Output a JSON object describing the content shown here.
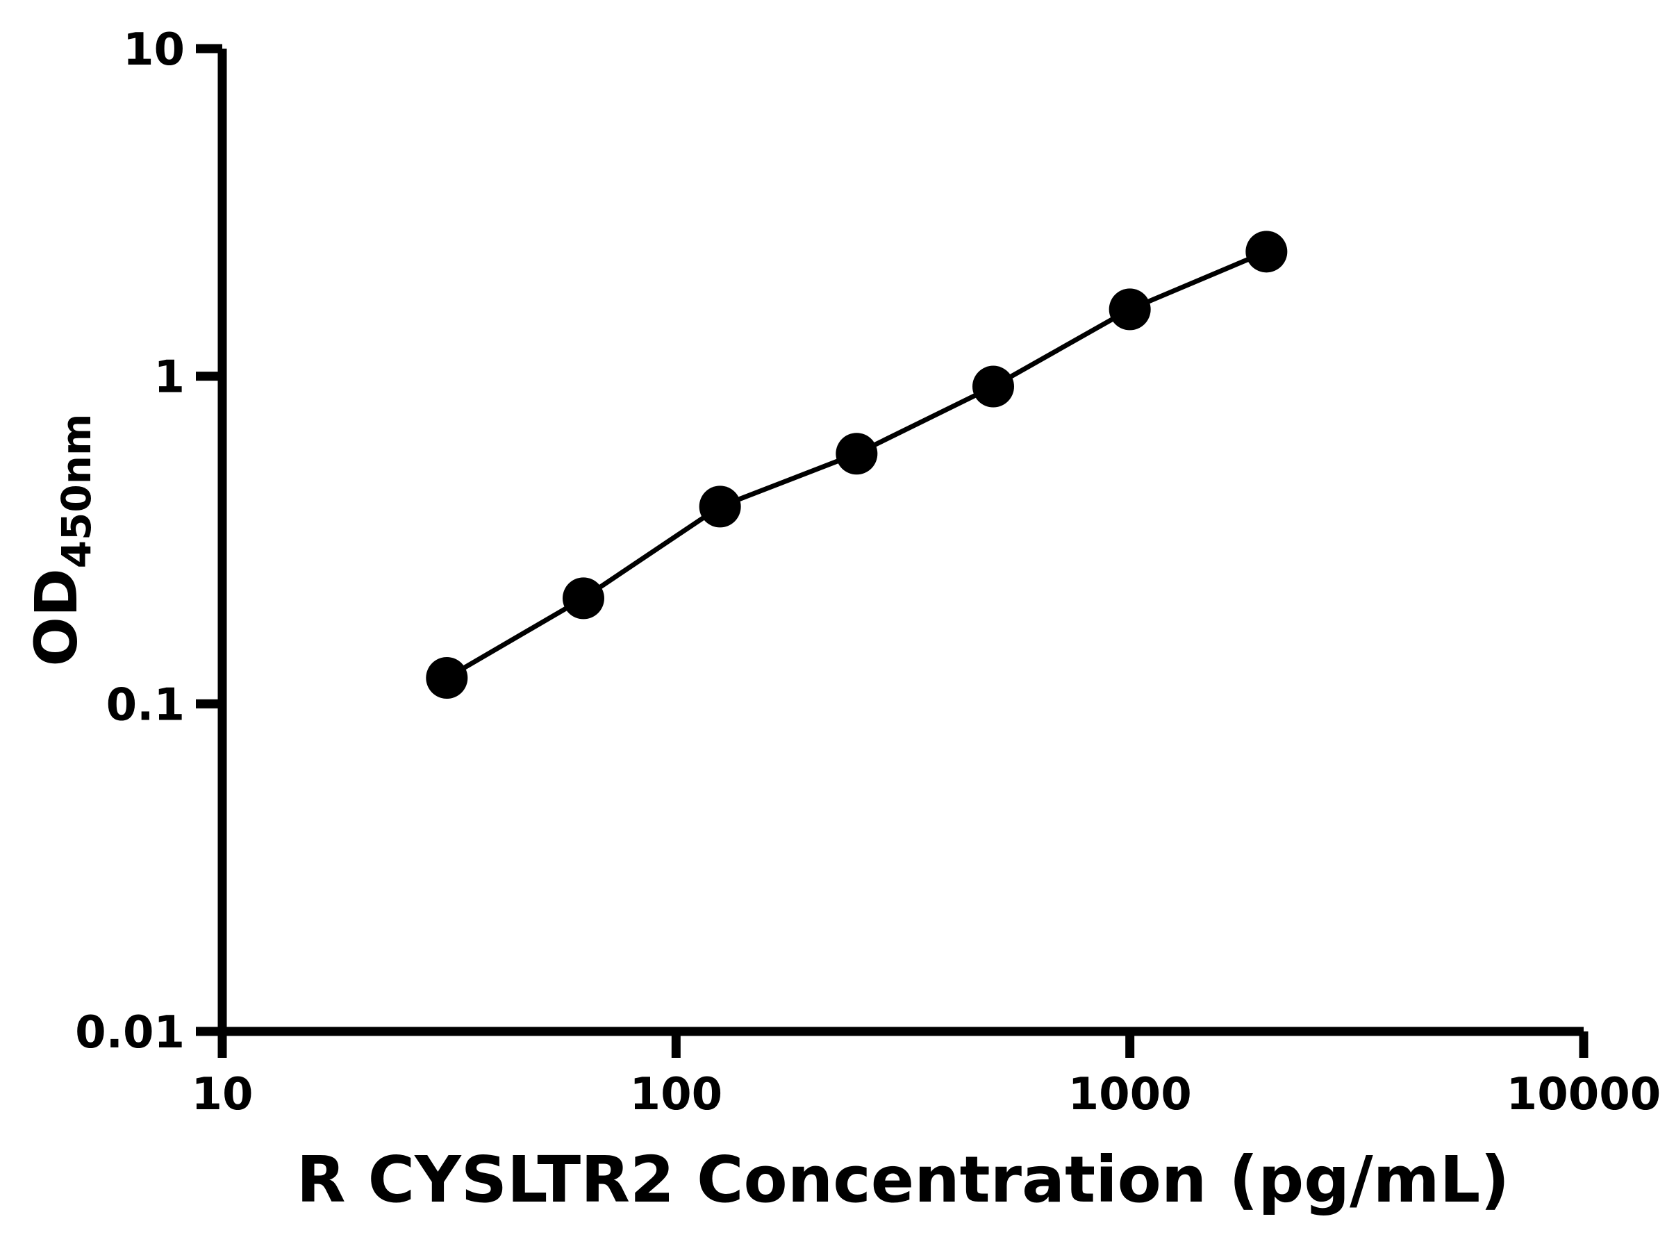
{
  "figure": {
    "background": "#ffffff"
  },
  "chart_data": {
    "type": "line",
    "title": "",
    "xlabel": "R CYSLTR2 Concentration (pg/mL)",
    "ylabel_main": "OD",
    "ylabel_sub": "450nm",
    "x_scale": "log",
    "y_scale": "log",
    "xlim": [
      10,
      10000
    ],
    "ylim": [
      0.01,
      10
    ],
    "x_ticks": [
      10,
      100,
      1000,
      10000
    ],
    "x_tick_labels": [
      "10",
      "100",
      "1000",
      "10000"
    ],
    "y_ticks": [
      0.01,
      0.1,
      1,
      10
    ],
    "y_tick_labels": [
      "0.01",
      "0.1",
      "1",
      "10"
    ],
    "grid": false,
    "legend": "none",
    "marker": "circle",
    "marker_color": "#000000",
    "line_color": "#000000",
    "axis_color": "#000000",
    "points": [
      {
        "x": 31.25,
        "y": 0.12
      },
      {
        "x": 62.5,
        "y": 0.21
      },
      {
        "x": 125,
        "y": 0.4
      },
      {
        "x": 250,
        "y": 0.58
      },
      {
        "x": 500,
        "y": 0.93
      },
      {
        "x": 1000,
        "y": 1.6
      },
      {
        "x": 2000,
        "y": 2.4
      }
    ]
  }
}
